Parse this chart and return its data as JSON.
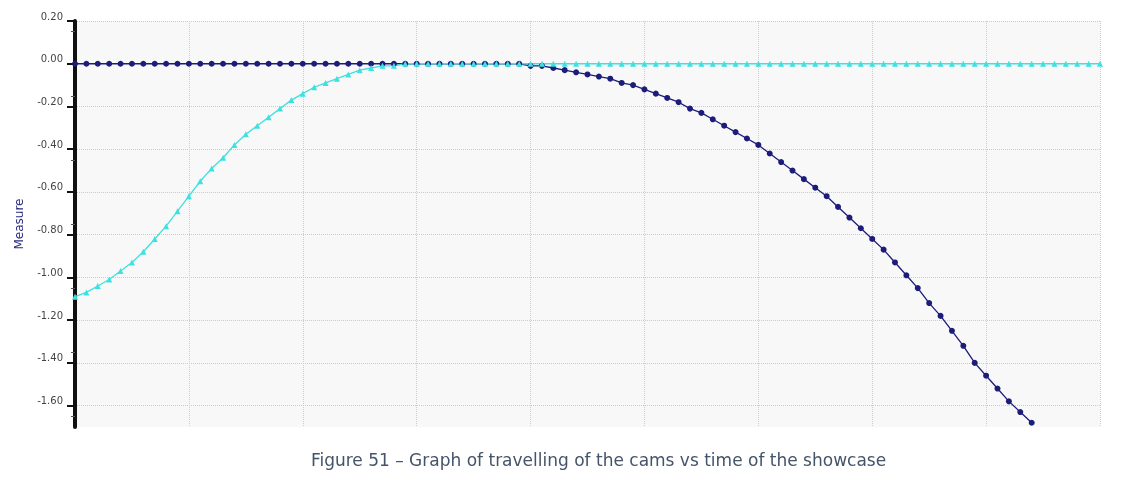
{
  "chart_data": {
    "type": "line",
    "ylabel": "Measure",
    "annotations": [
      "Figure 51 – Graph of travelling of the cams vs time of the showcase"
    ],
    "categories": [
      null,
      null,
      null,
      null,
      null,
      null,
      null,
      null,
      null,
      null,
      null,
      null,
      null,
      null,
      null,
      null,
      null,
      null,
      null,
      null,
      null,
      null,
      null,
      null,
      null,
      null,
      null,
      null,
      null,
      null,
      null,
      null,
      null,
      null,
      null,
      null,
      null,
      null,
      null,
      null,
      null,
      null,
      null,
      null,
      null,
      null,
      null,
      null,
      null,
      null,
      null,
      null,
      null,
      null,
      null,
      null,
      null,
      null,
      null,
      null,
      null,
      null,
      null,
      null,
      null,
      null,
      null,
      null,
      null,
      null,
      null,
      null,
      null,
      null,
      null,
      null,
      null,
      null,
      null,
      null,
      null,
      null,
      null,
      null,
      null,
      null,
      null,
      null,
      null,
      null,
      null
    ],
    "series": [
      {
        "color": "#1c1c7a",
        "marker": "circle",
        "values": [
          0,
          0,
          0,
          0,
          0,
          0,
          0,
          0,
          0,
          0,
          0,
          0,
          0,
          0,
          0,
          0,
          0,
          0,
          0,
          0,
          0,
          0,
          0,
          0,
          0,
          0,
          0,
          0,
          0,
          0,
          0,
          0,
          0,
          0,
          0,
          0,
          0,
          0,
          0,
          0,
          -0.01,
          -0.01,
          -0.02,
          -0.03,
          -0.04,
          -0.05,
          -0.06,
          -0.07,
          -0.09,
          -0.1,
          -0.12,
          -0.14,
          -0.16,
          -0.18,
          -0.21,
          -0.23,
          -0.26,
          -0.29,
          -0.32,
          -0.35,
          -0.38,
          -0.42,
          -0.46,
          -0.5,
          -0.54,
          -0.58,
          -0.62,
          -0.67,
          -0.72,
          -0.77,
          -0.82,
          -0.87,
          -0.93,
          -0.99,
          -1.05,
          -1.12,
          -1.18,
          -1.25,
          -1.32,
          -1.4,
          -1.46,
          -1.52,
          -1.58,
          -1.63,
          -1.68,
          null,
          null,
          null,
          null,
          null,
          null
        ]
      },
      {
        "color": "#3ee0e0",
        "marker": "triangle",
        "values": [
          -1.09,
          -1.07,
          -1.04,
          -1.01,
          -0.97,
          -0.93,
          -0.88,
          -0.82,
          -0.76,
          -0.69,
          -0.62,
          -0.55,
          -0.49,
          -0.44,
          -0.38,
          -0.33,
          -0.29,
          -0.25,
          -0.21,
          -0.17,
          -0.14,
          -0.11,
          -0.09,
          -0.07,
          -0.05,
          -0.03,
          -0.02,
          -0.01,
          -0.01,
          0,
          0,
          0,
          0,
          0,
          0,
          0,
          0,
          0,
          0,
          0,
          0,
          0,
          0,
          0,
          0,
          0,
          0,
          0,
          0,
          0,
          0,
          0,
          0,
          0,
          0,
          0,
          0,
          0,
          0,
          0,
          0,
          0,
          0,
          0,
          0,
          0,
          0,
          0,
          0,
          0,
          0,
          0,
          0,
          0,
          0,
          0,
          0,
          0,
          0,
          0,
          0,
          0,
          0,
          0,
          0,
          0,
          0,
          0,
          0,
          0,
          0
        ]
      }
    ],
    "ylim": [
      -1.7,
      0.2
    ],
    "yticks": [
      {
        "value": 0.2,
        "label": "0.20"
      },
      {
        "value": 0,
        "label": "0.00"
      },
      {
        "value": -0.2,
        "label": "-0.20"
      },
      {
        "value": -0.4,
        "label": "-0.40"
      },
      {
        "value": -0.6,
        "label": "-0.60"
      },
      {
        "value": -0.8,
        "label": "-0.80"
      },
      {
        "value": -1.0,
        "label": "-1.00"
      },
      {
        "value": -1.2,
        "label": "-1.20"
      },
      {
        "value": -1.4,
        "label": "-1.40"
      },
      {
        "value": -1.6,
        "label": "-1.60"
      }
    ],
    "tick_labels": "y",
    "grid": true,
    "line_style": "solid"
  }
}
